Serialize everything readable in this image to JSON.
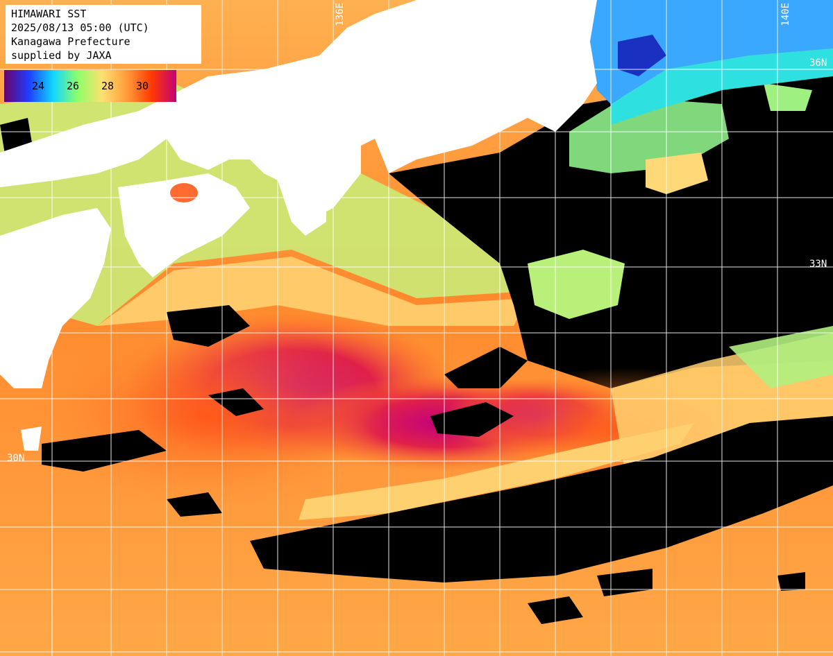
{
  "header": {
    "line1": "HIMAWARI SST",
    "line2": "2025/08/13 05:00 (UTC)",
    "line3": "Kanagawa Prefecture",
    "line4": "supplied by JAXA"
  },
  "colorbar": {
    "ticks": [
      "24",
      "26",
      "28",
      "30"
    ],
    "gradient": [
      "#6a006a",
      "#1f3dff",
      "#11d6ff",
      "#8fff6a",
      "#ffe070",
      "#ff9a3a",
      "#ff3a00",
      "#c4007a"
    ]
  },
  "grid_labels": {
    "lat_36": "36N",
    "lat_33": "33N",
    "lat_30": "30N",
    "lon_136": "136E",
    "lon_140": "140E"
  },
  "colors": {
    "land": "#ffffff",
    "missing": "#000000",
    "grid": "#ffffff"
  }
}
